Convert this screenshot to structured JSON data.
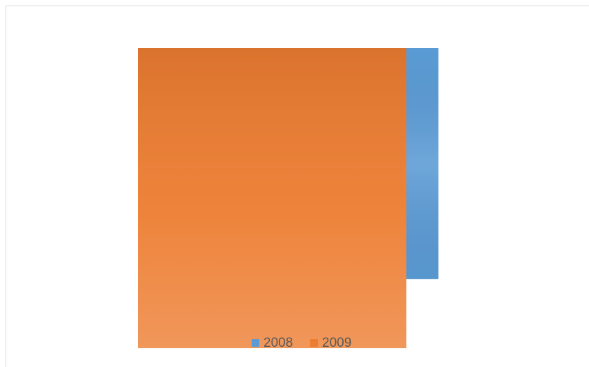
{
  "chart_data": {
    "type": "bar",
    "categories": [
      null
    ],
    "series": [
      {
        "name": "2008",
        "color": "#5b9bd5",
        "values": [
          77
        ]
      },
      {
        "name": "2009",
        "color": "#ed7d31",
        "values": [
          100
        ]
      }
    ],
    "ylim": [
      0,
      100
    ],
    "y_reversed": true,
    "legend": "bottom"
  }
}
